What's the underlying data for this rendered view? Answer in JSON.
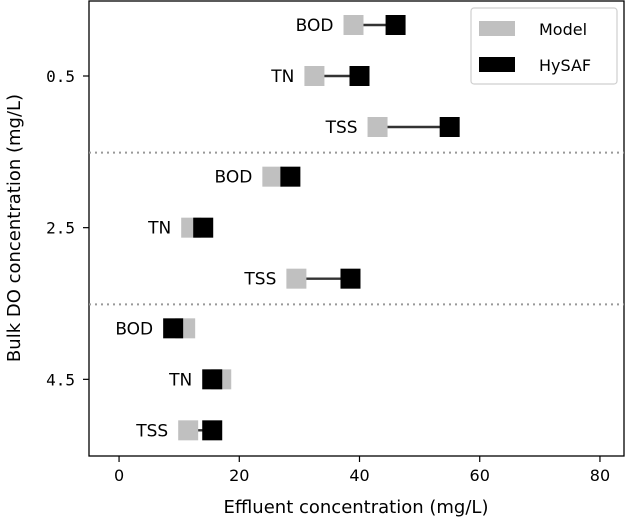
{
  "chart_data": {
    "type": "dumbbell",
    "xlabel": "Effluent concentration (mg/L)",
    "ylabel": "Bulk DO concentration (mg/L)",
    "xlim": [
      -5,
      84
    ],
    "xticks": [
      "0",
      "20",
      "40",
      "60",
      "80"
    ],
    "legend": {
      "placement": "top-right",
      "entries": [
        {
          "name": "Model",
          "color": "#c0c0c0"
        },
        {
          "name": "HySAF",
          "color": "#000000"
        }
      ]
    },
    "groups": [
      {
        "label": "0.5",
        "rows": [
          {
            "name": "BOD",
            "model": 39,
            "hysaf": 46
          },
          {
            "name": "TN",
            "model": 32.5,
            "hysaf": 40
          },
          {
            "name": "TSS",
            "model": 43,
            "hysaf": 55
          }
        ]
      },
      {
        "label": "2.5",
        "rows": [
          {
            "name": "BOD",
            "model": 25.5,
            "hysaf": 28.5
          },
          {
            "name": "TN",
            "model": 12,
            "hysaf": 14
          },
          {
            "name": "TSS",
            "model": 29.5,
            "hysaf": 38.5
          }
        ]
      },
      {
        "label": "4.5",
        "rows": [
          {
            "name": "BOD",
            "model": 11,
            "hysaf": 9
          },
          {
            "name": "TN",
            "model": 17,
            "hysaf": 15.5
          },
          {
            "name": "TSS",
            "model": 11.5,
            "hysaf": 15.5
          }
        ]
      }
    ]
  }
}
